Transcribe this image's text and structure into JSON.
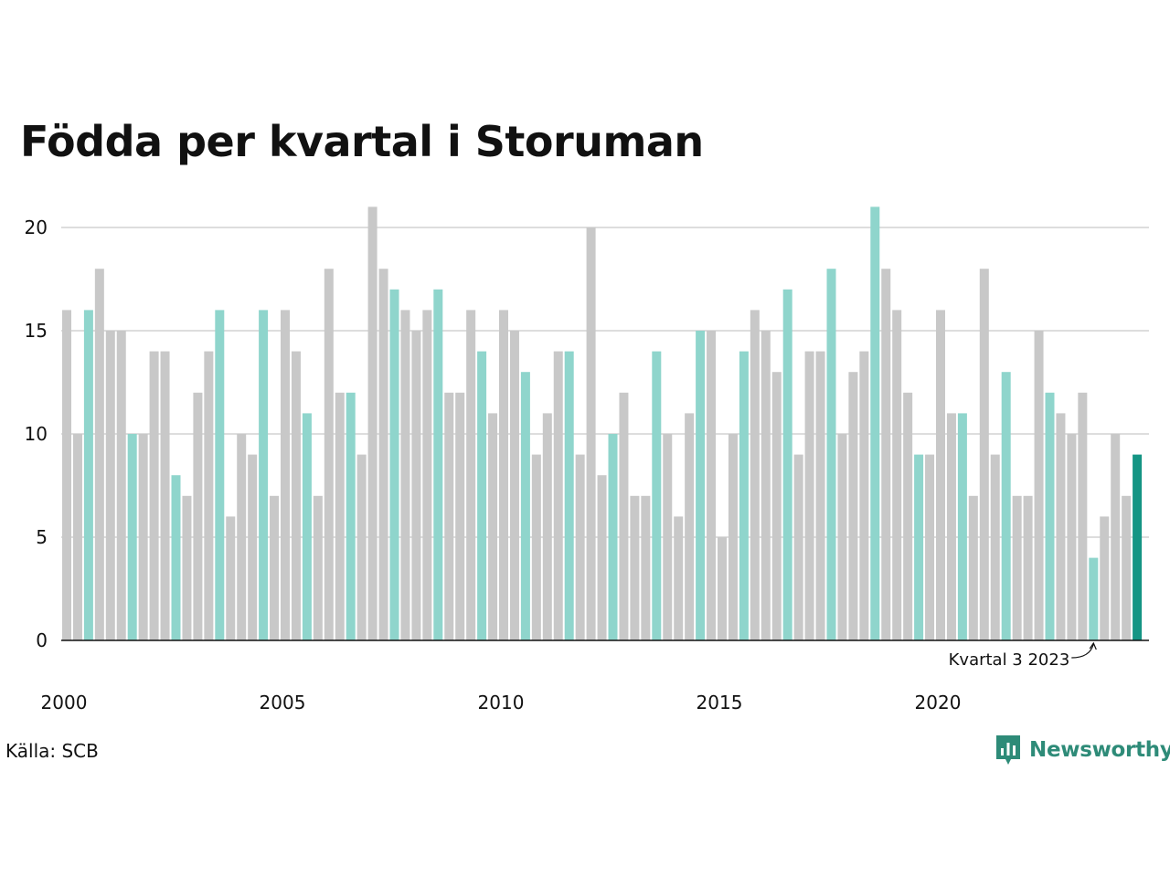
{
  "header": {
    "title": "Födda per kvartal i Storuman"
  },
  "footer": {
    "source": "Källa: SCB",
    "brand": "Newsworthy"
  },
  "colors": {
    "bar_default": "#c8c8c8",
    "bar_q3": "#8fd5cc",
    "bar_latest": "#159584",
    "gridline": "#dddddd",
    "axis": "#111111",
    "brand": "#2e8b78"
  },
  "icons": {
    "brand": "bar-chart-speech-bubble-icon"
  },
  "chart_data": {
    "type": "bar",
    "title": "Födda per kvartal i Storuman",
    "xlabel": "",
    "ylabel": "",
    "ylim": [
      0,
      21
    ],
    "yticks": [
      0,
      5,
      10,
      15,
      20
    ],
    "xticks": [
      "2000",
      "2005",
      "2010",
      "2015",
      "2020"
    ],
    "grid": true,
    "highlight_rule": "kvartal 3",
    "annotation": {
      "text": "Kvartal 3 2023",
      "target": "2023 Q3"
    },
    "categories": [
      "2000 Q1",
      "2000 Q2",
      "2000 Q3",
      "2000 Q4",
      "2001 Q1",
      "2001 Q2",
      "2001 Q3",
      "2001 Q4",
      "2002 Q1",
      "2002 Q2",
      "2002 Q3",
      "2002 Q4",
      "2003 Q1",
      "2003 Q2",
      "2003 Q3",
      "2003 Q4",
      "2004 Q1",
      "2004 Q2",
      "2004 Q3",
      "2004 Q4",
      "2005 Q1",
      "2005 Q2",
      "2005 Q3",
      "2005 Q4",
      "2006 Q1",
      "2006 Q2",
      "2006 Q3",
      "2006 Q4",
      "2007 Q1",
      "2007 Q2",
      "2007 Q3",
      "2007 Q4",
      "2008 Q1",
      "2008 Q2",
      "2008 Q3",
      "2008 Q4",
      "2009 Q1",
      "2009 Q2",
      "2009 Q3",
      "2009 Q4",
      "2010 Q1",
      "2010 Q2",
      "2010 Q3",
      "2010 Q4",
      "2011 Q1",
      "2011 Q2",
      "2011 Q3",
      "2011 Q4",
      "2012 Q1",
      "2012 Q2",
      "2012 Q3",
      "2012 Q4",
      "2013 Q1",
      "2013 Q2",
      "2013 Q3",
      "2013 Q4",
      "2014 Q1",
      "2014 Q2",
      "2014 Q3",
      "2014 Q4",
      "2015 Q1",
      "2015 Q2",
      "2015 Q3",
      "2015 Q4",
      "2016 Q1",
      "2016 Q2",
      "2016 Q3",
      "2016 Q4",
      "2017 Q1",
      "2017 Q2",
      "2017 Q3",
      "2017 Q4",
      "2018 Q1",
      "2018 Q2",
      "2018 Q3",
      "2018 Q4",
      "2019 Q1",
      "2019 Q2",
      "2019 Q3",
      "2019 Q4",
      "2020 Q1",
      "2020 Q2",
      "2020 Q3",
      "2020 Q4",
      "2021 Q1",
      "2021 Q2",
      "2021 Q3",
      "2021 Q4",
      "2022 Q1",
      "2022 Q2",
      "2022 Q3",
      "2022 Q4",
      "2023 Q1",
      "2023 Q2",
      "2023 Q3",
      "2023 Q4",
      "2024 Q1",
      "2024 Q2",
      "2024 Q3"
    ],
    "values": [
      16,
      10,
      16,
      18,
      15,
      15,
      10,
      10,
      14,
      14,
      8,
      7,
      12,
      14,
      16,
      6,
      10,
      9,
      16,
      7,
      16,
      14,
      11,
      7,
      18,
      12,
      12,
      9,
      21,
      18,
      17,
      16,
      15,
      16,
      17,
      12,
      12,
      16,
      14,
      11,
      16,
      15,
      13,
      9,
      11,
      14,
      14,
      9,
      20,
      8,
      10,
      12,
      7,
      7,
      14,
      10,
      6,
      11,
      15,
      15,
      5,
      10,
      14,
      16,
      15,
      13,
      17,
      9,
      14,
      14,
      18,
      10,
      13,
      14,
      21,
      18,
      16,
      12,
      9,
      9,
      16,
      11,
      11,
      7,
      18,
      9,
      13,
      7,
      7,
      15,
      12,
      11,
      10,
      12,
      4,
      6,
      10,
      7,
      9
    ]
  }
}
